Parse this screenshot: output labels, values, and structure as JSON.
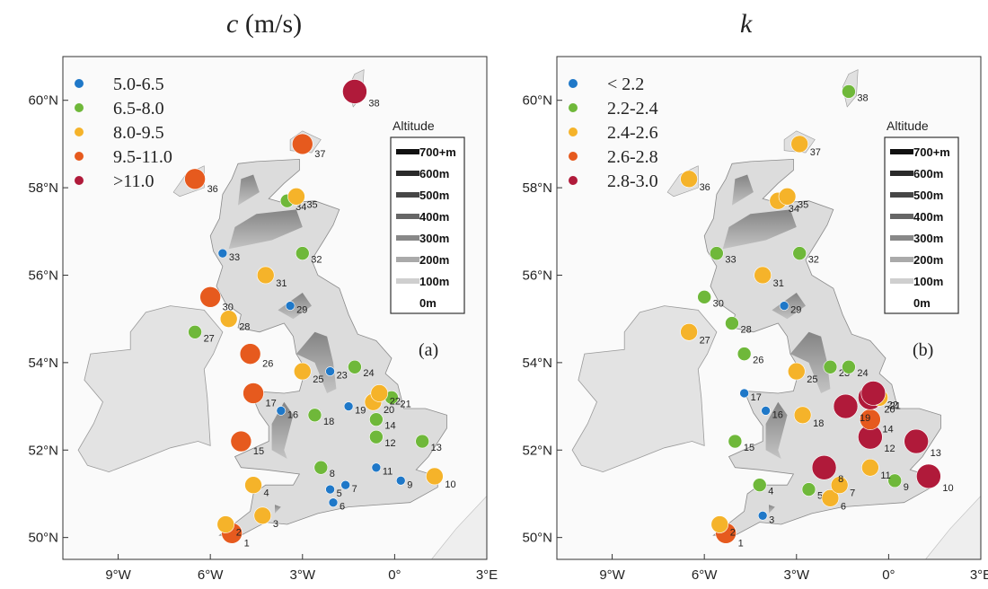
{
  "panels": [
    {
      "id": "c",
      "title_symbol": "c",
      "title_unit": "(m/s)",
      "panel_letter": "(a)",
      "legend": [
        {
          "label": "5.0-6.5",
          "color": "#1f78c8"
        },
        {
          "label": "6.5-8.0",
          "color": "#6fb83a"
        },
        {
          "label": "8.0-9.5",
          "color": "#f5b32a"
        },
        {
          "label": "9.5-11.0",
          "color": "#e65a1e"
        },
        {
          "label": ">11.0",
          "color": "#b01a3a"
        }
      ],
      "sites": [
        {
          "id": "1",
          "lon": -5.3,
          "lat": 50.1,
          "cls": 3
        },
        {
          "id": "2",
          "lon": -5.5,
          "lat": 50.3,
          "cls": 2
        },
        {
          "id": "3",
          "lon": -4.3,
          "lat": 50.5,
          "cls": 2
        },
        {
          "id": "4",
          "lon": -4.6,
          "lat": 51.2,
          "cls": 2
        },
        {
          "id": "5",
          "lon": -2.1,
          "lat": 51.1,
          "cls": 0
        },
        {
          "id": "6",
          "lon": -2.0,
          "lat": 50.8,
          "cls": 0
        },
        {
          "id": "7",
          "lon": -1.6,
          "lat": 51.2,
          "cls": 0
        },
        {
          "id": "8",
          "lon": -2.4,
          "lat": 51.6,
          "cls": 1
        },
        {
          "id": "9",
          "lon": 0.2,
          "lat": 51.3,
          "cls": 0
        },
        {
          "id": "10",
          "lon": 1.3,
          "lat": 51.4,
          "cls": 2
        },
        {
          "id": "11",
          "lon": -0.6,
          "lat": 51.6,
          "cls": 0
        },
        {
          "id": "12",
          "lon": -0.6,
          "lat": 52.3,
          "cls": 1
        },
        {
          "id": "13",
          "lon": 0.9,
          "lat": 52.2,
          "cls": 1
        },
        {
          "id": "14",
          "lon": -0.6,
          "lat": 52.7,
          "cls": 1
        },
        {
          "id": "15",
          "lon": -5.0,
          "lat": 52.2,
          "cls": 3
        },
        {
          "id": "16",
          "lon": -3.7,
          "lat": 52.9,
          "cls": 0
        },
        {
          "id": "17",
          "lon": -4.6,
          "lat": 53.3,
          "cls": 3
        },
        {
          "id": "18",
          "lon": -2.6,
          "lat": 52.8,
          "cls": 1
        },
        {
          "id": "19",
          "lon": -1.5,
          "lat": 53.0,
          "cls": 0
        },
        {
          "id": "20",
          "lon": -0.7,
          "lat": 53.1,
          "cls": 2
        },
        {
          "id": "21",
          "lon": -0.1,
          "lat": 53.2,
          "cls": 1
        },
        {
          "id": "22",
          "lon": -0.5,
          "lat": 53.3,
          "cls": 2
        },
        {
          "id": "23",
          "lon": -2.1,
          "lat": 53.8,
          "cls": 0
        },
        {
          "id": "24",
          "lon": -1.3,
          "lat": 53.9,
          "cls": 1
        },
        {
          "id": "25",
          "lon": -3.0,
          "lat": 53.8,
          "cls": 2
        },
        {
          "id": "26",
          "lon": -4.7,
          "lat": 54.2,
          "cls": 3
        },
        {
          "id": "27",
          "lon": -6.5,
          "lat": 54.7,
          "cls": 1
        },
        {
          "id": "28",
          "lon": -5.4,
          "lat": 55.0,
          "cls": 2
        },
        {
          "id": "29",
          "lon": -3.4,
          "lat": 55.3,
          "cls": 0
        },
        {
          "id": "30",
          "lon": -6.0,
          "lat": 55.5,
          "cls": 3
        },
        {
          "id": "31",
          "lon": -4.2,
          "lat": 56.0,
          "cls": 2
        },
        {
          "id": "32",
          "lon": -3.0,
          "lat": 56.5,
          "cls": 1
        },
        {
          "id": "33",
          "lon": -5.6,
          "lat": 56.5,
          "cls": 0
        },
        {
          "id": "34",
          "lon": -3.5,
          "lat": 57.7,
          "cls": 1
        },
        {
          "id": "35",
          "lon": -3.2,
          "lat": 57.8,
          "cls": 2
        },
        {
          "id": "36",
          "lon": -6.5,
          "lat": 58.2,
          "cls": 3
        },
        {
          "id": "37",
          "lon": -3.0,
          "lat": 59.0,
          "cls": 3
        },
        {
          "id": "38",
          "lon": -1.3,
          "lat": 60.2,
          "cls": 4
        }
      ]
    },
    {
      "id": "k",
      "title_symbol": "k",
      "title_unit": "",
      "panel_letter": "(b)",
      "legend": [
        {
          "label": "< 2.2",
          "color": "#1f78c8"
        },
        {
          "label": "2.2-2.4",
          "color": "#6fb83a"
        },
        {
          "label": "2.4-2.6",
          "color": "#f5b32a"
        },
        {
          "label": "2.6-2.8",
          "color": "#e65a1e"
        },
        {
          "label": "2.8-3.0",
          "color": "#b01a3a"
        }
      ],
      "sites": [
        {
          "id": "1",
          "lon": -5.3,
          "lat": 50.1,
          "cls": 3
        },
        {
          "id": "2",
          "lon": -5.5,
          "lat": 50.3,
          "cls": 2
        },
        {
          "id": "3",
          "lon": -4.1,
          "lat": 50.5,
          "cls": 0
        },
        {
          "id": "4",
          "lon": -4.2,
          "lat": 51.2,
          "cls": 1
        },
        {
          "id": "5",
          "lon": -2.6,
          "lat": 51.1,
          "cls": 1
        },
        {
          "id": "6",
          "lon": -1.9,
          "lat": 50.9,
          "cls": 2
        },
        {
          "id": "7",
          "lon": -1.6,
          "lat": 51.2,
          "cls": 2
        },
        {
          "id": "8",
          "lon": -2.1,
          "lat": 51.6,
          "cls": 4
        },
        {
          "id": "9",
          "lon": 0.2,
          "lat": 51.3,
          "cls": 1
        },
        {
          "id": "10",
          "lon": 1.3,
          "lat": 51.4,
          "cls": 4
        },
        {
          "id": "11",
          "lon": -0.6,
          "lat": 51.6,
          "cls": 2
        },
        {
          "id": "12",
          "lon": -0.6,
          "lat": 52.3,
          "cls": 4
        },
        {
          "id": "13",
          "lon": 0.9,
          "lat": 52.2,
          "cls": 4
        },
        {
          "id": "14",
          "lon": -0.6,
          "lat": 52.7,
          "cls": 3
        },
        {
          "id": "15",
          "lon": -5.0,
          "lat": 52.2,
          "cls": 1
        },
        {
          "id": "16",
          "lon": -4.0,
          "lat": 52.9,
          "cls": 0
        },
        {
          "id": "17",
          "lon": -4.7,
          "lat": 53.3,
          "cls": 0
        },
        {
          "id": "18",
          "lon": -2.8,
          "lat": 52.8,
          "cls": 2
        },
        {
          "id": "19",
          "lon": -1.4,
          "lat": 53.0,
          "cls": 4
        },
        {
          "id": "20",
          "lon": -0.6,
          "lat": 53.2,
          "cls": 4
        },
        {
          "id": "21",
          "lon": -0.3,
          "lat": 53.2,
          "cls": 2
        },
        {
          "id": "22",
          "lon": -0.5,
          "lat": 53.3,
          "cls": 4
        },
        {
          "id": "23",
          "lon": -1.9,
          "lat": 53.9,
          "cls": 1
        },
        {
          "id": "24",
          "lon": -1.3,
          "lat": 53.9,
          "cls": 1
        },
        {
          "id": "25",
          "lon": -3.0,
          "lat": 53.8,
          "cls": 2
        },
        {
          "id": "26",
          "lon": -4.7,
          "lat": 54.2,
          "cls": 1
        },
        {
          "id": "27",
          "lon": -6.5,
          "lat": 54.7,
          "cls": 2
        },
        {
          "id": "28",
          "lon": -5.1,
          "lat": 54.9,
          "cls": 1
        },
        {
          "id": "29",
          "lon": -3.4,
          "lat": 55.3,
          "cls": 0
        },
        {
          "id": "30",
          "lon": -6.0,
          "lat": 55.5,
          "cls": 1
        },
        {
          "id": "31",
          "lon": -4.1,
          "lat": 56.0,
          "cls": 2
        },
        {
          "id": "32",
          "lon": -2.9,
          "lat": 56.5,
          "cls": 1
        },
        {
          "id": "33",
          "lon": -5.6,
          "lat": 56.5,
          "cls": 1
        },
        {
          "id": "34",
          "lon": -3.6,
          "lat": 57.7,
          "cls": 2
        },
        {
          "id": "35",
          "lon": -3.3,
          "lat": 57.8,
          "cls": 2
        },
        {
          "id": "36",
          "lon": -6.5,
          "lat": 58.2,
          "cls": 2
        },
        {
          "id": "37",
          "lon": -2.9,
          "lat": 59.0,
          "cls": 2
        },
        {
          "id": "38",
          "lon": -1.3,
          "lat": 60.2,
          "cls": 1
        }
      ]
    }
  ],
  "altitude_legend": {
    "title": "Altitude",
    "levels": [
      {
        "label": "700+m",
        "color": "#111111"
      },
      {
        "label": "600m",
        "color": "#2a2a2a"
      },
      {
        "label": "500m",
        "color": "#474747"
      },
      {
        "label": "400m",
        "color": "#666666"
      },
      {
        "label": "300m",
        "color": "#888888"
      },
      {
        "label": "200m",
        "color": "#aaaaaa"
      },
      {
        "label": "100m",
        "color": "#cfcfcf"
      },
      {
        "label": "0m",
        "color": "#ffffff"
      }
    ]
  },
  "axes": {
    "x_ticks": [
      {
        "value": -9,
        "label": "9°W"
      },
      {
        "value": -6,
        "label": "6°W"
      },
      {
        "value": -3,
        "label": "3°W"
      },
      {
        "value": 0,
        "label": "0°"
      },
      {
        "value": 3,
        "label": "3°E"
      }
    ],
    "y_ticks": [
      {
        "value": 50,
        "label": "50°N"
      },
      {
        "value": 52,
        "label": "52°N"
      },
      {
        "value": 54,
        "label": "54°N"
      },
      {
        "value": 56,
        "label": "56°N"
      },
      {
        "value": 58,
        "label": "58°N"
      },
      {
        "value": 60,
        "label": "60°N"
      }
    ],
    "lon_range": [
      -10.8,
      3.0
    ],
    "lat_range": [
      49.5,
      61.0
    ]
  }
}
